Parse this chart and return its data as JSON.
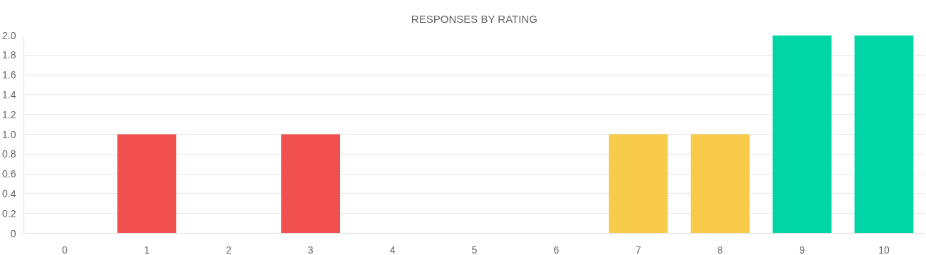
{
  "chart_data": {
    "type": "bar",
    "title": "RESPONSES BY RATING",
    "categories": [
      "0",
      "1",
      "2",
      "3",
      "4",
      "5",
      "6",
      "7",
      "8",
      "9",
      "10"
    ],
    "values": [
      0,
      1,
      0,
      1,
      0,
      0,
      0,
      1,
      1,
      2,
      2
    ],
    "colors": [
      "#f24f4f",
      "#f24f4f",
      "#f24f4f",
      "#f24f4f",
      "#f24f4f",
      "#f24f4f",
      "#f24f4f",
      "#f8cb4b",
      "#f8cb4b",
      "#00d6a5",
      "#00d6a5"
    ],
    "ylim": [
      0,
      2.0
    ],
    "yticks": [
      0,
      {
        "value": 0.2,
        "label": "0.2"
      },
      {
        "value": 0.4,
        "label": "0.4"
      },
      {
        "value": 0.6,
        "label": "0.6"
      },
      {
        "value": 0.8,
        "label": "0.8"
      },
      {
        "value": 1.0,
        "label": "1.0"
      },
      {
        "value": 1.2,
        "label": "1.2"
      },
      {
        "value": 1.4,
        "label": "1.4"
      },
      {
        "value": 1.6,
        "label": "1.6"
      },
      {
        "value": 1.8,
        "label": "1.8"
      },
      {
        "value": 2.0,
        "label": "2.0"
      }
    ],
    "grid": "y"
  }
}
